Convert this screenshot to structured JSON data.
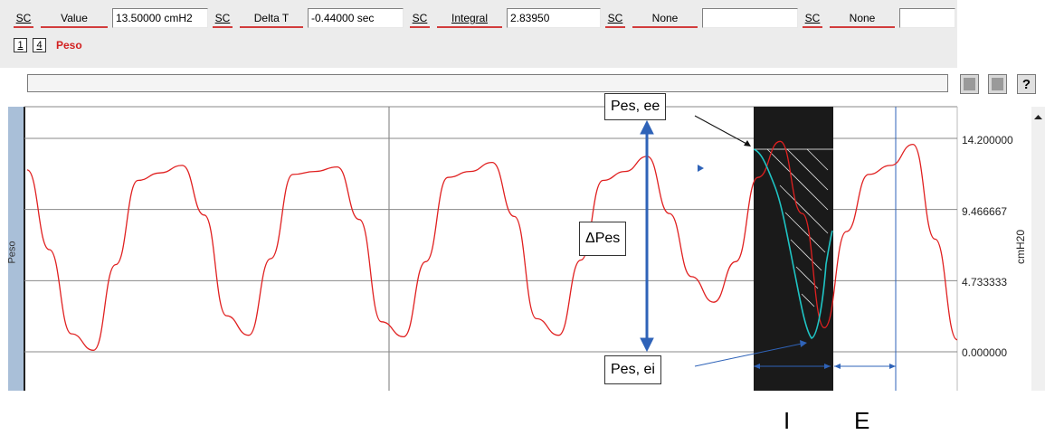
{
  "toolbar": {
    "sc": "SC",
    "items": [
      {
        "label": "Value",
        "value": "13.50000 cmH2"
      },
      {
        "label": "Delta T",
        "value": "-0.44000 sec"
      },
      {
        "label": "Integral",
        "value": "2.83950"
      },
      {
        "label": "None",
        "value": ""
      },
      {
        "label": "None",
        "value": ""
      }
    ]
  },
  "channel": {
    "buttons": [
      "1",
      "4"
    ],
    "name": "Peso"
  },
  "right_controls": {
    "help": "?"
  },
  "side_label": "Peso",
  "y_axis": {
    "unit": "cmH20",
    "ticks": [
      "14.200000",
      "9.466667",
      "4.733333",
      "0.000000"
    ]
  },
  "annotations": {
    "pes_ee": "Pes, ee",
    "delta_pes": "ΔPes",
    "pes_ei": "Pes, ei",
    "phase_i": "I",
    "phase_e": "E"
  },
  "colors": {
    "trace": "#e02020",
    "highlight_trace": "#1fc4c4",
    "annotation_blue": "#2f63b8",
    "highlight_band": "#1a1a1a"
  },
  "chart_data": {
    "type": "line",
    "ylabel": "cmH20",
    "ylim": [
      0,
      14.2
    ],
    "series": [
      {
        "values": [
          12.1,
          6.8,
          1.2,
          0.1,
          5.8,
          11.4,
          11.9,
          12.4,
          9.1,
          2.4,
          1.1,
          6.2,
          11.8,
          12.0,
          12.3,
          8.8,
          2.0,
          1.0,
          6.0,
          11.6,
          12.0,
          12.6,
          9.0,
          2.2,
          1.1,
          6.1,
          11.4,
          12.0,
          13.0,
          9.2,
          5.0,
          3.3,
          6.0,
          11.6,
          14.0,
          9.2,
          1.6,
          8.0,
          11.8,
          12.4,
          13.8,
          7.5,
          0.8
        ]
      }
    ]
  }
}
